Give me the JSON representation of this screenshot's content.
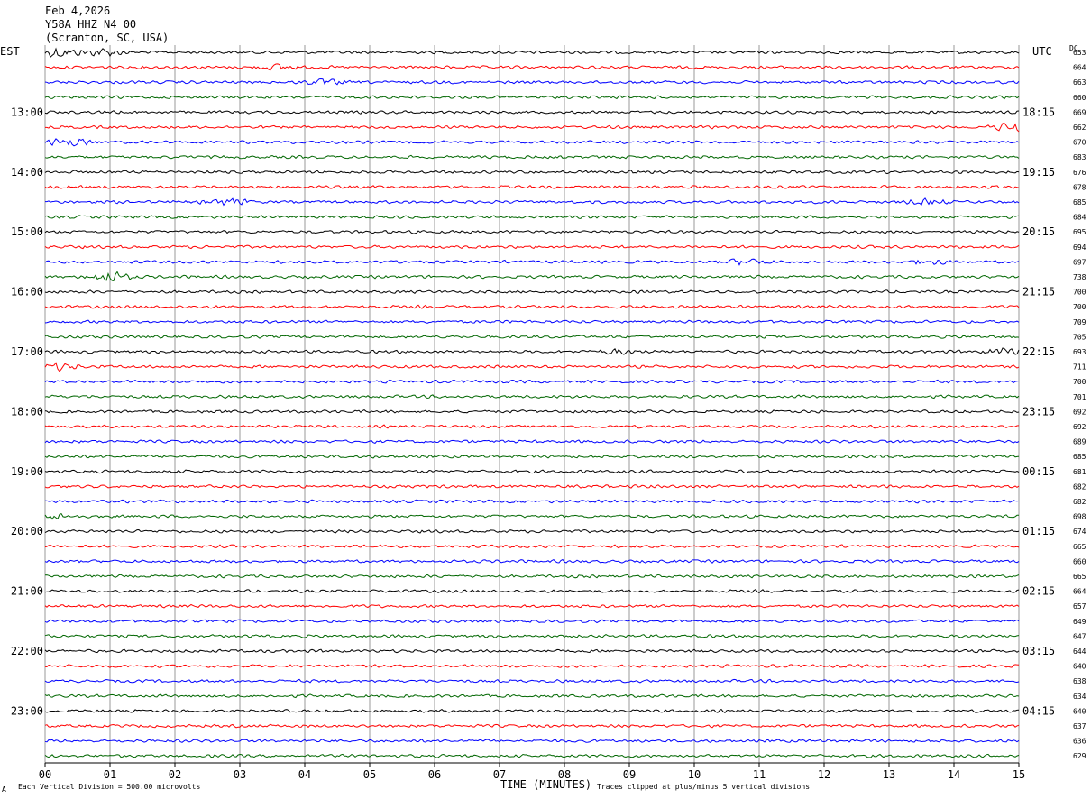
{
  "header": {
    "date": "Feb 4,2026",
    "station": "Y58A HHZ N4 00",
    "location": "(Scranton, SC, USA)"
  },
  "left_tz": "EST",
  "right_tz": "UTC",
  "dc_header": "DC",
  "x_title": "TIME (MINUTES)",
  "footer_left": "Each Vertical Division =  500.00 microvolts",
  "footer_right": "Traces clipped at plus/minus 5 vertical divisions",
  "corner_mark": "A",
  "colors": [
    "#000000",
    "#ff0000",
    "#0000ff",
    "#006600"
  ],
  "chart_data": {
    "type": "line",
    "title": "Y58A HHZ N4 00 (Scranton, SC, USA) Feb 4,2026",
    "xlabel": "TIME (MINUTES)",
    "ylabel": "",
    "xlim": [
      0,
      15
    ],
    "x_ticks": [
      "00",
      "01",
      "02",
      "03",
      "04",
      "05",
      "06",
      "07",
      "08",
      "09",
      "10",
      "11",
      "12",
      "13",
      "14",
      "15"
    ],
    "grid": "vertical lines each minute",
    "trace_count": 48,
    "traces_per_hour": 4,
    "left_hour_labels": [
      "13:00",
      "14:00",
      "15:00",
      "16:00",
      "17:00",
      "18:00",
      "19:00",
      "20:00",
      "21:00",
      "22:00",
      "23:00"
    ],
    "right_hour_labels": [
      "18:15",
      "19:15",
      "20:15",
      "21:15",
      "22:15",
      "23:15",
      "00:15",
      "01:15",
      "02:15",
      "03:15",
      "04:15"
    ],
    "dc_offsets": [
      653,
      664,
      663,
      660,
      669,
      662,
      670,
      683,
      676,
      678,
      685,
      684,
      695,
      694,
      697,
      738,
      700,
      700,
      709,
      705,
      693,
      711,
      700,
      701,
      692,
      692,
      689,
      685,
      681,
      682,
      682,
      698,
      674,
      665,
      660,
      665,
      664,
      657,
      649,
      647,
      644,
      640,
      638,
      634,
      640,
      637,
      636,
      629
    ],
    "events": [
      {
        "trace": 0,
        "minute": 0.2,
        "strength": 3.5
      },
      {
        "trace": 0,
        "minute": 0.9,
        "strength": 2.5
      },
      {
        "trace": 1,
        "minute": 3.6,
        "strength": 1.8
      },
      {
        "trace": 2,
        "minute": 4.3,
        "strength": 1.6
      },
      {
        "trace": 5,
        "minute": 14.9,
        "strength": 3.0
      },
      {
        "trace": 6,
        "minute": 0.4,
        "strength": 2.5
      },
      {
        "trace": 10,
        "minute": 2.8,
        "strength": 2.3
      },
      {
        "trace": 10,
        "minute": 13.6,
        "strength": 1.5
      },
      {
        "trace": 14,
        "minute": 10.8,
        "strength": 2.2
      },
      {
        "trace": 14,
        "minute": 13.6,
        "strength": 1.6
      },
      {
        "trace": 15,
        "minute": 1.0,
        "strength": 3.5
      },
      {
        "trace": 20,
        "minute": 14.8,
        "strength": 2.2
      },
      {
        "trace": 20,
        "minute": 8.8,
        "strength": 1.4
      },
      {
        "trace": 21,
        "minute": 0.2,
        "strength": 2.2
      },
      {
        "trace": 31,
        "minute": 0.1,
        "strength": 2.0
      }
    ]
  }
}
